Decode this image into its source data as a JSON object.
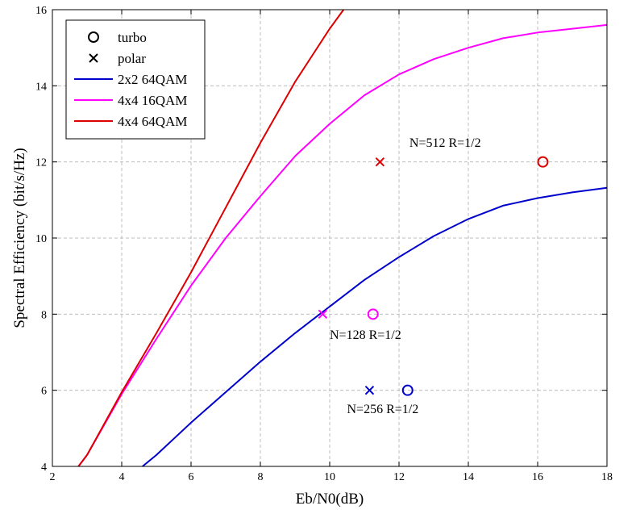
{
  "chart_data": {
    "type": "line",
    "title": "",
    "xlabel": "Eb/N0(dB)",
    "ylabel": "Spectral Efficiency (bit/s/Hz)",
    "xlim": [
      2,
      18
    ],
    "ylim": [
      4,
      16
    ],
    "xticks": [
      2,
      4,
      6,
      8,
      10,
      12,
      14,
      16,
      18
    ],
    "yticks": [
      4,
      6,
      8,
      10,
      12,
      14,
      16
    ],
    "grid": true,
    "legend_position": "top-left",
    "legend": [
      {
        "label": "turbo",
        "marker": "circle",
        "color": "#000000"
      },
      {
        "label": "polar",
        "marker": "cross",
        "color": "#000000"
      },
      {
        "label": "2x2 64QAM",
        "line": true,
        "color": "#0000cc"
      },
      {
        "label": "4x4 16QAM",
        "line": true,
        "color": "#ff00ff"
      },
      {
        "label": "4x4 64QAM",
        "line": true,
        "color": "#dd0000"
      }
    ],
    "series": [
      {
        "name": "2x2 64QAM",
        "color": "#0000cc",
        "x": [
          4.6,
          5,
          6,
          7,
          8,
          9,
          10,
          11,
          12,
          13,
          14,
          15,
          16,
          17,
          18
        ],
        "y": [
          4.0,
          4.3,
          5.15,
          5.95,
          6.75,
          7.5,
          8.2,
          8.9,
          9.5,
          10.05,
          10.5,
          10.85,
          11.05,
          11.2,
          11.32
        ]
      },
      {
        "name": "4x4 16QAM",
        "color": "#ff00ff",
        "x": [
          2.75,
          3,
          4,
          5,
          6,
          7,
          8,
          9,
          10,
          11,
          12,
          13,
          14,
          15,
          16,
          17,
          18
        ],
        "y": [
          4.0,
          4.3,
          5.9,
          7.35,
          8.75,
          10.0,
          11.1,
          12.15,
          13.0,
          13.75,
          14.3,
          14.7,
          15.0,
          15.25,
          15.4,
          15.5,
          15.6
        ]
      },
      {
        "name": "4x4 64QAM",
        "color": "#dd0000",
        "x": [
          2.75,
          3,
          4,
          5,
          6,
          7,
          8,
          9,
          10,
          10.4
        ],
        "y": [
          4.0,
          4.3,
          5.95,
          7.5,
          9.1,
          10.8,
          12.5,
          14.1,
          15.5,
          16.0
        ]
      }
    ],
    "points": [
      {
        "marker": "circle",
        "color": "#dd0000",
        "x": 16.15,
        "y": 12.0
      },
      {
        "marker": "cross",
        "color": "#dd0000",
        "x": 11.45,
        "y": 12.0
      },
      {
        "marker": "circle",
        "color": "#ff00ff",
        "x": 11.25,
        "y": 8.0
      },
      {
        "marker": "cross",
        "color": "#ff00ff",
        "x": 9.8,
        "y": 8.0
      },
      {
        "marker": "circle",
        "color": "#0000cc",
        "x": 12.25,
        "y": 6.0
      },
      {
        "marker": "cross",
        "color": "#0000cc",
        "x": 11.15,
        "y": 6.0
      }
    ],
    "annotations": [
      {
        "text": "N=512 R=1/2",
        "x": 12.3,
        "y": 12.4
      },
      {
        "text": "N=128 R=1/2",
        "x": 10.0,
        "y": 7.35
      },
      {
        "text": "N=256 R=1/2",
        "x": 10.5,
        "y": 5.4
      }
    ]
  }
}
